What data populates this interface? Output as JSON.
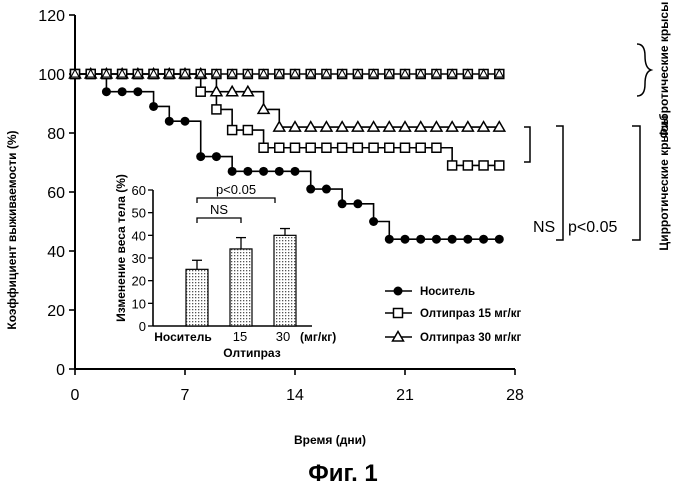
{
  "chart_data": [
    {
      "type": "line",
      "xlabel": "Время (дни)",
      "ylabel": "Коэффициент выживаемости (%)",
      "xlim": [
        0,
        28
      ],
      "ylim": [
        0,
        120
      ],
      "xticks": [
        0,
        7,
        14,
        21,
        28
      ],
      "yticks": [
        0,
        20,
        40,
        60,
        80,
        100,
        120
      ],
      "grid": false,
      "legend_position": "bottom-right",
      "series": [
        {
          "name": "Носитель",
          "marker": "filled-circle",
          "x": [
            0,
            1,
            2,
            3,
            4,
            5,
            6,
            7,
            8,
            9,
            10,
            11,
            12,
            13,
            14,
            15,
            16,
            17,
            18,
            19,
            20,
            21,
            22,
            23,
            24,
            25,
            26,
            27
          ],
          "y": [
            100,
            100,
            94,
            94,
            94,
            89,
            84,
            84,
            72,
            72,
            67,
            67,
            67,
            67,
            67,
            61,
            61,
            56,
            56,
            50,
            44,
            44,
            44,
            44,
            44,
            44,
            44,
            44
          ]
        },
        {
          "name": "Олтипраз 15 мг/кг",
          "marker": "open-square",
          "x": [
            0,
            1,
            2,
            3,
            4,
            5,
            6,
            7,
            8,
            9,
            10,
            11,
            12,
            13,
            14,
            15,
            16,
            17,
            18,
            19,
            20,
            21,
            22,
            23,
            24,
            25,
            26,
            27
          ],
          "y": [
            100,
            100,
            100,
            100,
            100,
            100,
            100,
            100,
            94,
            88,
            81,
            81,
            75,
            75,
            75,
            75,
            75,
            75,
            75,
            75,
            75,
            75,
            75,
            75,
            69,
            69,
            69,
            69
          ]
        },
        {
          "name": "Олтипраз 30 мг/кг",
          "marker": "open-triangle",
          "x": [
            0,
            1,
            2,
            3,
            4,
            5,
            6,
            7,
            8,
            9,
            10,
            11,
            12,
            13,
            14,
            15,
            16,
            17,
            18,
            19,
            20,
            21,
            22,
            23,
            24,
            25,
            26,
            27
          ],
          "y": [
            100,
            100,
            100,
            100,
            100,
            100,
            100,
            100,
            100,
            94,
            94,
            94,
            88,
            82,
            82,
            82,
            82,
            82,
            82,
            82,
            82,
            82,
            82,
            82,
            82,
            82,
            82,
            82
          ]
        },
        {
          "name": "",
          "marker": "multiple-overlapping",
          "x": [
            0,
            1,
            2,
            3,
            4,
            5,
            6,
            7,
            8,
            9,
            10,
            11,
            12,
            13,
            14,
            15,
            16,
            17,
            18,
            19,
            20,
            21,
            22,
            23,
            24,
            25,
            26,
            27
          ],
          "y": [
            100,
            100,
            100,
            100,
            100,
            100,
            100,
            100,
            100,
            100,
            100,
            100,
            100,
            100,
            100,
            100,
            100,
            100,
            100,
            100,
            100,
            100,
            100,
            100,
            100,
            100,
            100,
            100
          ]
        }
      ],
      "annotations": {
        "ns": "NS",
        "pvalue": "p<0.05",
        "group_fibrotic": "Фибротические крысы",
        "group_cirrhotic": "Цирротические крысы"
      }
    },
    {
      "type": "bar",
      "ylabel": "Изменение веса тела (%)",
      "xlabel": "Олтипраз",
      "unit_label": "(мг/кг)",
      "categories": [
        "Носитель",
        "15",
        "30"
      ],
      "values": [
        25,
        34,
        40
      ],
      "errors": [
        4,
        5,
        3
      ],
      "ylim": [
        0,
        60
      ],
      "yticks": [
        0,
        10,
        20,
        30,
        40,
        50,
        60
      ],
      "bar_fill": "dotted",
      "annotations": {
        "ns": "NS",
        "pvalue": "p<0.05"
      }
    }
  ],
  "figure": {
    "caption": "Фиг. 1"
  },
  "colors": {
    "ink": "#000000",
    "background": "#ffffff",
    "bar_fill": "#b8b8b8"
  }
}
